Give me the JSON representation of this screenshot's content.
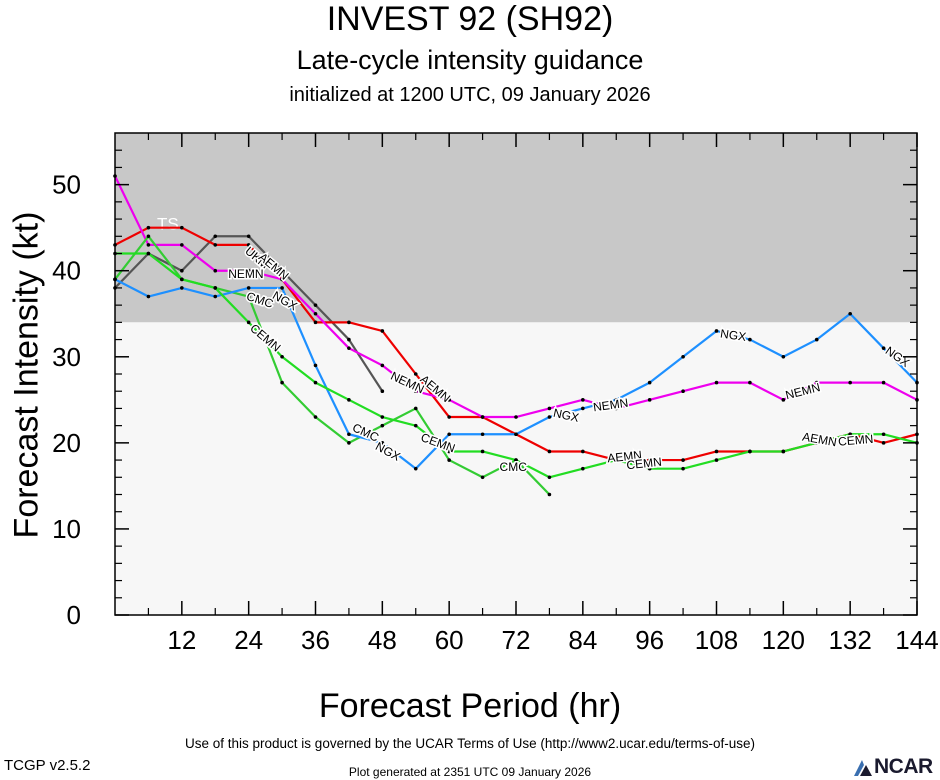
{
  "header": {
    "title": "INVEST 92 (SH92)",
    "subtitle": "Late-cycle intensity guidance",
    "initialized": "initialized at 1200 UTC, 09 January 2026"
  },
  "footer": {
    "terms": "Use of this product is governed by the UCAR Terms of Use (http://www2.ucar.edu/terms-of-use)",
    "version": "TCGP v2.5.2",
    "generated": "Plot generated at 2351 UTC   09 January 2026",
    "logo_text": "NCAR"
  },
  "chart_data": {
    "type": "line",
    "xlabel": "Forecast Period (hr)",
    "ylabel": "Forecast Intensity (kt)",
    "xlim": [
      0,
      144
    ],
    "ylim": [
      0,
      56
    ],
    "xticks": [
      12,
      24,
      36,
      48,
      60,
      72,
      84,
      96,
      108,
      120,
      132,
      144
    ],
    "yticks": [
      0,
      10,
      20,
      30,
      40,
      50
    ],
    "bands": [
      {
        "label": "TS",
        "from": 34,
        "to": 56,
        "color": "#c8c8c8"
      },
      {
        "label": "",
        "from": 0,
        "to": 34,
        "color": "#f7f7f7"
      }
    ],
    "series": [
      {
        "name": "",
        "color": "#555555",
        "x": [
          0,
          6,
          12,
          18,
          24,
          30,
          36,
          42,
          48
        ],
        "y": [
          38,
          42,
          40,
          44,
          44,
          40,
          36,
          32,
          26
        ],
        "labels": [
          {
            "text": "UKM",
            "x": 25.5,
            "y": 41.5,
            "angle": 40
          }
        ]
      },
      {
        "name": "",
        "color": "#ee0000",
        "x": [
          0,
          6,
          12,
          18,
          24,
          30,
          36,
          42,
          48,
          54,
          60,
          66,
          72,
          78,
          84,
          90,
          96,
          102,
          108,
          114,
          120,
          126,
          132,
          138,
          144
        ],
        "y": [
          43,
          45,
          45,
          43,
          43,
          39,
          34,
          34,
          33,
          28,
          23,
          23,
          21,
          19,
          19,
          18,
          18,
          18,
          19,
          19,
          19,
          20,
          21,
          20,
          21
        ],
        "labels": [
          {
            "text": "AEMN",
            "x": 28.5,
            "y": 40.5,
            "angle": 40
          },
          {
            "text": "AEMN",
            "x": 57.5,
            "y": 26.3,
            "angle": 40
          },
          {
            "text": "AEMN",
            "x": 91.5,
            "y": 18.4,
            "angle": -6
          },
          {
            "text": "AEMN",
            "x": 126.5,
            "y": 20.4,
            "angle": 10
          }
        ]
      },
      {
        "name": "",
        "color": "#ee00ee",
        "x": [
          0,
          6,
          12,
          18,
          24,
          30,
          36,
          42,
          48,
          54,
          60,
          66,
          72,
          78,
          84,
          90,
          96,
          102,
          108,
          114,
          120,
          126,
          132,
          138,
          144
        ],
        "y": [
          51,
          43,
          43,
          40,
          40,
          39,
          35,
          31,
          29,
          26,
          25,
          23,
          23,
          24,
          25,
          24,
          25,
          26,
          27,
          27,
          25,
          27,
          27,
          27,
          25
        ],
        "labels": [
          {
            "text": "NEMN",
            "x": 23.5,
            "y": 39.6,
            "angle": 0
          },
          {
            "text": "NEMN",
            "x": 52.5,
            "y": 27.0,
            "angle": 25
          },
          {
            "text": "NEMN",
            "x": 89,
            "y": 24.4,
            "angle": -8
          },
          {
            "text": "NEMN",
            "x": 123.5,
            "y": 26.0,
            "angle": -14
          }
        ]
      },
      {
        "name": "",
        "color": "#33cc33",
        "x": [
          0,
          6,
          12,
          18,
          24,
          30,
          36,
          42,
          48,
          54,
          60,
          66,
          72,
          78
        ],
        "y": [
          39,
          44,
          39,
          38,
          37,
          27,
          23,
          20,
          22,
          24,
          18,
          16,
          18,
          14
        ],
        "labels": [
          {
            "text": "CMC",
            "x": 26,
            "y": 36.6,
            "angle": 18
          },
          {
            "text": "CMC",
            "x": 45,
            "y": 21.2,
            "angle": 25
          },
          {
            "text": "CMC",
            "x": 71.5,
            "y": 17.2,
            "angle": 0
          }
        ]
      },
      {
        "name": "",
        "color": "#1e90ff",
        "x": [
          0,
          6,
          12,
          18,
          24,
          30,
          36,
          42,
          48,
          54,
          60,
          66,
          72,
          78,
          84,
          90,
          96,
          102,
          108,
          114,
          120,
          126,
          132,
          138,
          144
        ],
        "y": [
          39,
          37,
          38,
          37,
          38,
          38,
          29,
          21,
          20,
          17,
          21,
          21,
          21,
          23,
          24,
          25,
          27,
          30,
          33,
          32,
          30,
          32,
          35,
          31,
          27
        ],
        "labels": [
          {
            "text": "NGX",
            "x": 30.5,
            "y": 36.5,
            "angle": 30
          },
          {
            "text": "NGX",
            "x": 49,
            "y": 19.0,
            "angle": 28
          },
          {
            "text": "NGX",
            "x": 81,
            "y": 23.2,
            "angle": 12
          },
          {
            "text": "NGX",
            "x": 111,
            "y": 32.5,
            "angle": 8
          },
          {
            "text": "NGX",
            "x": 140.5,
            "y": 30.0,
            "angle": 35
          }
        ]
      },
      {
        "name": "",
        "color": "#22dd22",
        "x": [
          0,
          6,
          12,
          18,
          24,
          30,
          36,
          42,
          48,
          54,
          60,
          66,
          72,
          78,
          84,
          90,
          96,
          102,
          108,
          114,
          120,
          126,
          132,
          138,
          144
        ],
        "y": [
          42,
          42,
          39,
          38,
          34,
          30,
          27,
          25,
          23,
          22,
          19,
          19,
          18,
          16,
          17,
          18,
          17,
          17,
          18,
          19,
          19,
          20,
          21,
          21,
          20
        ],
        "labels": [
          {
            "text": "CEMN",
            "x": 27,
            "y": 32.2,
            "angle": 40
          },
          {
            "text": "CEMN",
            "x": 58,
            "y": 20.0,
            "angle": 20
          },
          {
            "text": "CEMN",
            "x": 95,
            "y": 17.6,
            "angle": -6
          },
          {
            "text": "CEMN",
            "x": 133,
            "y": 20.3,
            "angle": -5
          }
        ]
      }
    ]
  }
}
